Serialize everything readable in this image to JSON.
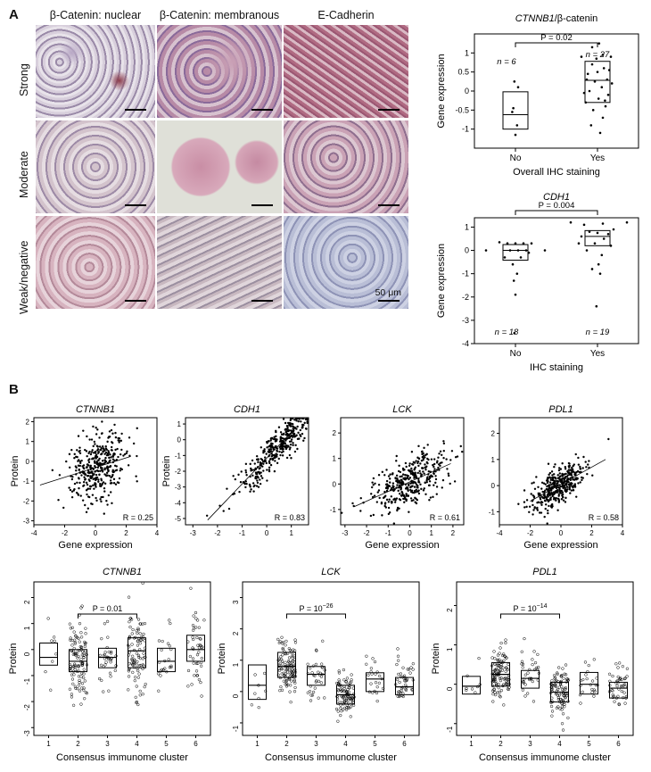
{
  "panelA": {
    "letter": "A",
    "columns": [
      "β-Catenin: nuclear",
      "β-Catenin: membranous",
      "E-Cadherin"
    ],
    "rows": [
      "Strong",
      "Moderate",
      "Weak/negative"
    ],
    "scale_label": "50 μm"
  },
  "panelB": {
    "letter": "B"
  },
  "chart_data": [
    {
      "id": "a1",
      "type": "scatter",
      "subtype": "boxplot",
      "title_italic": "CTNNB1",
      "title_rest": "/β-catenin",
      "xlabel": "Overall IHC staining",
      "ylabel": "Gene expression",
      "categories": [
        "No",
        "Yes"
      ],
      "ylim": [
        -1.5,
        1.5
      ],
      "yticks": [
        -1,
        -0.5,
        0,
        0.5,
        1
      ],
      "n_labels": [
        "n = 6",
        "n = 27"
      ],
      "p_label": "P = 0.02",
      "boxes": [
        {
          "q1": -1.0,
          "median": -0.62,
          "q3": -0.02
        },
        {
          "q1": -0.3,
          "median": 0.28,
          "q3": 0.78
        }
      ],
      "points": [
        [
          [
            -0.02,
            0.25
          ],
          [
            0.05,
            0.1
          ],
          [
            -0.04,
            -0.45
          ],
          [
            0.03,
            -0.9
          ],
          [
            0.0,
            -1.15
          ],
          [
            -0.06,
            -0.55
          ]
        ],
        [
          [
            -0.3,
            0.9
          ],
          [
            0.25,
            0.9
          ],
          [
            -0.1,
            0.7
          ],
          [
            0.12,
            0.6
          ],
          [
            0.0,
            0.5
          ],
          [
            -0.2,
            0.3
          ],
          [
            0.18,
            0.3
          ],
          [
            -0.05,
            0.25
          ],
          [
            0.08,
            0.1
          ],
          [
            -0.15,
            0.0
          ],
          [
            0.2,
            -0.1
          ],
          [
            0.02,
            -0.2
          ],
          [
            -0.22,
            -0.3
          ],
          [
            0.15,
            -0.4
          ],
          [
            -0.08,
            -0.5
          ],
          [
            0.1,
            -0.7
          ],
          [
            -0.12,
            -0.9
          ],
          [
            0.05,
            -1.1
          ],
          [
            -0.18,
            0.45
          ],
          [
            0.22,
            0.55
          ],
          [
            -0.02,
            0.85
          ],
          [
            0.1,
            0.95
          ],
          [
            -0.25,
            -0.05
          ],
          [
            0.27,
            0.2
          ],
          [
            0.03,
            1.25
          ],
          [
            -0.1,
            1.15
          ],
          [
            0.14,
            -0.25
          ]
        ]
      ]
    },
    {
      "id": "a2",
      "type": "scatter",
      "subtype": "boxplot",
      "title_italic": "CDH1",
      "title_rest": "",
      "xlabel": "IHC staining",
      "ylabel": "Gene expression",
      "categories": [
        "No",
        "Yes"
      ],
      "ylim": [
        -4,
        1.4
      ],
      "yticks": [
        -4,
        -3,
        -2,
        -1,
        0,
        1
      ],
      "n_labels": [
        "n = 18",
        "n = 19"
      ],
      "p_label": "P = 0.004",
      "boxes": [
        {
          "q1": -0.42,
          "median": 0.0,
          "q3": 0.25
        },
        {
          "q1": 0.2,
          "median": 0.6,
          "q3": 0.85
        }
      ],
      "points": [
        [
          [
            -0.3,
            0.35
          ],
          [
            -0.15,
            0.3
          ],
          [
            0.0,
            0.3
          ],
          [
            0.15,
            0.3
          ],
          [
            0.3,
            0.3
          ],
          [
            -0.55,
            0.0
          ],
          [
            -0.1,
            0.0
          ],
          [
            0.05,
            0.0
          ],
          [
            0.2,
            0.0
          ],
          [
            0.55,
            0.0
          ],
          [
            -0.2,
            -0.3
          ],
          [
            0.1,
            -0.3
          ],
          [
            -0.05,
            -0.6
          ],
          [
            0.03,
            -1.0
          ],
          [
            -0.03,
            -1.3
          ],
          [
            0.0,
            -1.9
          ],
          [
            -0.02,
            -3.55
          ],
          [
            0.25,
            -0.1
          ]
        ],
        [
          [
            -0.5,
            1.2
          ],
          [
            -0.25,
            1.1
          ],
          [
            0.1,
            1.15
          ],
          [
            0.55,
            1.2
          ],
          [
            -0.15,
            0.8
          ],
          [
            0.0,
            0.75
          ],
          [
            0.2,
            0.7
          ],
          [
            -0.3,
            0.6
          ],
          [
            0.12,
            0.5
          ],
          [
            -0.05,
            0.3
          ],
          [
            0.25,
            0.2
          ],
          [
            -0.2,
            0.0
          ],
          [
            0.08,
            -0.2
          ],
          [
            0.02,
            -0.6
          ],
          [
            -0.1,
            -0.8
          ],
          [
            0.05,
            -1.0
          ],
          [
            -0.02,
            -2.4
          ],
          [
            0.3,
            0.9
          ],
          [
            -0.35,
            0.3
          ]
        ]
      ]
    },
    {
      "id": "b1",
      "type": "scatter",
      "title": "CTNNB1",
      "xlabel": "Gene expression",
      "ylabel": "Protein",
      "xlim": [
        -4,
        4
      ],
      "ylim": [
        -3.2,
        2.2
      ],
      "xticks": [
        -4,
        -2,
        0,
        2,
        4
      ],
      "yticks": [
        -3,
        -2,
        -1,
        0,
        1,
        2
      ],
      "r_label": "R = 0.25",
      "fit": [
        -3.6,
        -1.2,
        2.3,
        0.25
      ],
      "n_points": 380,
      "seed": 11,
      "slope": 0.3,
      "noise": 0.9,
      "xmean": 0.1,
      "xsd": 0.9
    },
    {
      "id": "b2",
      "type": "scatter",
      "title": "CDH1",
      "xlabel": "",
      "ylabel": "Protein",
      "xlim": [
        -3.3,
        1.7
      ],
      "ylim": [
        -5.4,
        1.4
      ],
      "xticks": [
        -3,
        -2,
        -1,
        0,
        1
      ],
      "yticks": [
        -5,
        -4,
        -3,
        -2,
        -1,
        0,
        1
      ],
      "r_label": "R = 0.83",
      "fit": [
        -2.4,
        -5.1,
        1.2,
        0.8
      ],
      "n_points": 380,
      "seed": 23,
      "slope": 1.6,
      "noise": 0.6,
      "xmean": 0.4,
      "xsd": 0.8
    },
    {
      "id": "b3",
      "type": "scatter",
      "title": "LCK",
      "xlabel": "Gene expression",
      "ylabel": "",
      "xlim": [
        -3.2,
        2.5
      ],
      "ylim": [
        -1.6,
        2.6
      ],
      "xticks": [
        -3,
        -2,
        -1,
        0,
        1,
        2
      ],
      "yticks": [
        -1,
        0,
        1,
        2
      ],
      "r_label": "R = 0.61",
      "fit": [
        -2.6,
        -0.9,
        1.9,
        0.8
      ],
      "n_points": 380,
      "seed": 37,
      "slope": 0.42,
      "noise": 0.5,
      "xmean": 0.0,
      "xsd": 0.9
    },
    {
      "id": "b4",
      "type": "scatter",
      "title": "PDL1",
      "xlabel": "Gene expression",
      "ylabel": "",
      "xlim": [
        -4,
        4
      ],
      "ylim": [
        -1.5,
        2.6
      ],
      "xticks": [
        -4,
        -2,
        0,
        2,
        4
      ],
      "yticks": [
        -1,
        0,
        1,
        2
      ],
      "r_label": "R = 0.58",
      "fit": [
        -2.0,
        -0.6,
        2.9,
        1.0
      ],
      "n_points": 380,
      "seed": 41,
      "slope": 0.35,
      "noise": 0.35,
      "xmean": -0.2,
      "xsd": 0.9
    },
    {
      "id": "c1",
      "type": "scatter",
      "subtype": "boxplot",
      "title": "CTNNB1",
      "xlabel": "Consensus immunome cluster",
      "ylabel": "Protein",
      "categories": [
        "1",
        "2",
        "3",
        "4",
        "5",
        "6"
      ],
      "ylim": [
        -3.3,
        2.6
      ],
      "yticks": [
        -3,
        -2,
        -1,
        0,
        1,
        2
      ],
      "p_label": "P = 0.01",
      "p_from": 2,
      "p_to": 4,
      "boxes": [
        {
          "q1": -0.6,
          "median": -0.3,
          "q3": 0.25,
          "n": 8,
          "sd": 0.9
        },
        {
          "q1": -0.85,
          "median": -0.45,
          "q3": 0.0,
          "n": 110,
          "sd": 0.8
        },
        {
          "q1": -0.7,
          "median": -0.3,
          "q3": 0.05,
          "n": 34,
          "sd": 0.8
        },
        {
          "q1": -0.7,
          "median": -0.05,
          "q3": 0.45,
          "n": 95,
          "sd": 0.9
        },
        {
          "q1": -0.85,
          "median": -0.45,
          "q3": 0.05,
          "n": 22,
          "sd": 0.8
        },
        {
          "q1": -0.45,
          "median": 0.0,
          "q3": 0.55,
          "n": 45,
          "sd": 0.9
        }
      ]
    },
    {
      "id": "c2",
      "type": "scatter",
      "subtype": "boxplot",
      "title": "LCK",
      "xlabel": "Consensus immunome cluster",
      "ylabel": "Protein",
      "categories": [
        "1",
        "2",
        "3",
        "4",
        "5",
        "6"
      ],
      "ylim": [
        -1.4,
        3.5
      ],
      "yticks": [
        -1,
        0,
        1,
        2,
        3
      ],
      "p_label": "P = 10",
      "p_sup": "−26",
      "p_from": 2,
      "p_to": 4,
      "boxes": [
        {
          "q1": -0.25,
          "median": 0.2,
          "q3": 0.85,
          "n": 8,
          "sd": 0.5
        },
        {
          "q1": 0.45,
          "median": 0.8,
          "q3": 1.25,
          "n": 110,
          "sd": 0.45
        },
        {
          "q1": 0.2,
          "median": 0.55,
          "q3": 0.8,
          "n": 34,
          "sd": 0.45
        },
        {
          "q1": -0.4,
          "median": -0.1,
          "q3": 0.2,
          "n": 95,
          "sd": 0.4
        },
        {
          "q1": 0.0,
          "median": 0.4,
          "q3": 0.6,
          "n": 22,
          "sd": 0.4
        },
        {
          "q1": -0.1,
          "median": 0.15,
          "q3": 0.45,
          "n": 45,
          "sd": 0.4
        }
      ]
    },
    {
      "id": "c3",
      "type": "scatter",
      "subtype": "boxplot",
      "title": "PDL1",
      "xlabel": "Consensus immunome cluster",
      "ylabel": "Protein",
      "categories": [
        "1",
        "2",
        "3",
        "4",
        "5",
        "6"
      ],
      "ylim": [
        -1.3,
        2.6
      ],
      "yticks": [
        -1,
        0,
        1,
        2
      ],
      "p_label": "P = 10",
      "p_sup": "−14",
      "p_from": 2,
      "p_to": 4,
      "boxes": [
        {
          "q1": -0.25,
          "median": -0.05,
          "q3": 0.2,
          "n": 8,
          "sd": 0.3
        },
        {
          "q1": -0.05,
          "median": 0.25,
          "q3": 0.55,
          "n": 110,
          "sd": 0.4
        },
        {
          "q1": -0.1,
          "median": 0.15,
          "q3": 0.35,
          "n": 34,
          "sd": 0.35
        },
        {
          "q1": -0.45,
          "median": -0.2,
          "q3": 0.05,
          "n": 95,
          "sd": 0.3
        },
        {
          "q1": -0.25,
          "median": 0.0,
          "q3": 0.3,
          "n": 22,
          "sd": 0.35
        },
        {
          "q1": -0.35,
          "median": -0.1,
          "q3": 0.05,
          "n": 45,
          "sd": 0.3
        }
      ]
    }
  ]
}
